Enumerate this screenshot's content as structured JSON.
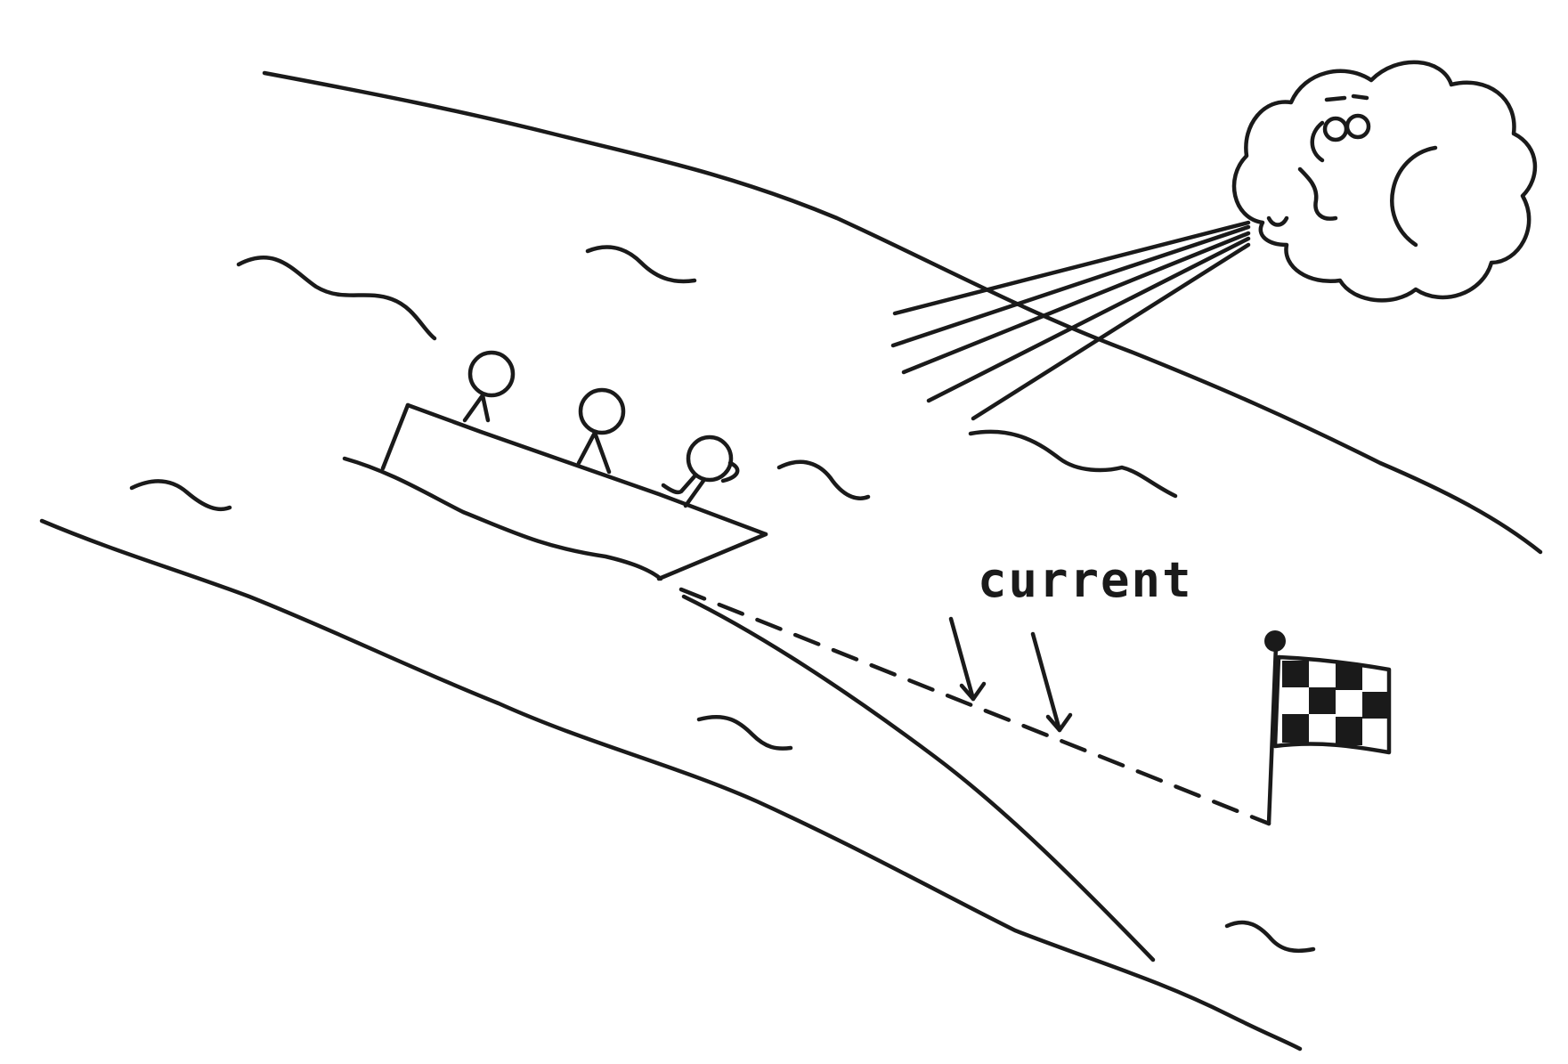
{
  "labels": {
    "current": "current"
  },
  "colors": {
    "ink": "#1a1a1a",
    "paper": "#ffffff"
  },
  "icons": [
    "wind-cloud-icon",
    "checkered-flag-icon"
  ]
}
